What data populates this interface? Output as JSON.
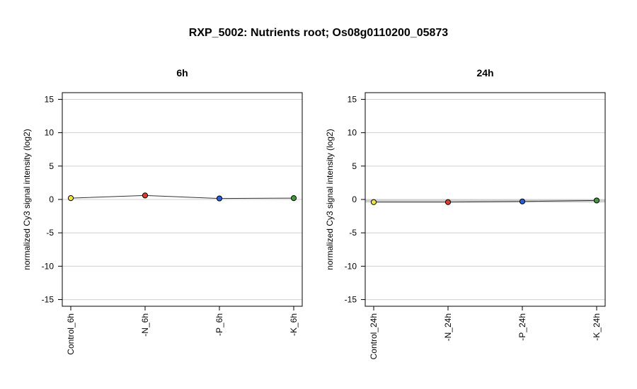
{
  "title": "RXP_5002: Nutrients root; Os08g0110200_05873",
  "chart_data": [
    {
      "type": "line",
      "title": "6h",
      "ylabel": "normalized Cy3 signal intensity (log2)",
      "ylim": [
        -16,
        16
      ],
      "yticks": [
        -15,
        -10,
        -5,
        0,
        5,
        10,
        15
      ],
      "grid": true,
      "categories": [
        "Control_6h",
        "-N_6h",
        "-P_6h",
        "-K_6h"
      ],
      "values": [
        0.2,
        0.6,
        0.15,
        0.2
      ],
      "point_colors": [
        "#f0e442",
        "#e03c2e",
        "#2a5fd6",
        "#3f9a3a"
      ],
      "band": null
    },
    {
      "type": "line",
      "title": "24h",
      "ylabel": "normalized Cy3 signal intensity (log2)",
      "ylim": [
        -16,
        16
      ],
      "yticks": [
        -15,
        -10,
        -5,
        0,
        5,
        10,
        15
      ],
      "grid": true,
      "categories": [
        "Control_24h",
        "-N_24h",
        "-P_24h",
        "-K_24h"
      ],
      "values": [
        -0.4,
        -0.4,
        -0.3,
        -0.15
      ],
      "point_colors": [
        "#f0e442",
        "#e03c2e",
        "#2a5fd6",
        "#3f9a3a"
      ],
      "band": [
        -0.45,
        0.0
      ]
    }
  ]
}
